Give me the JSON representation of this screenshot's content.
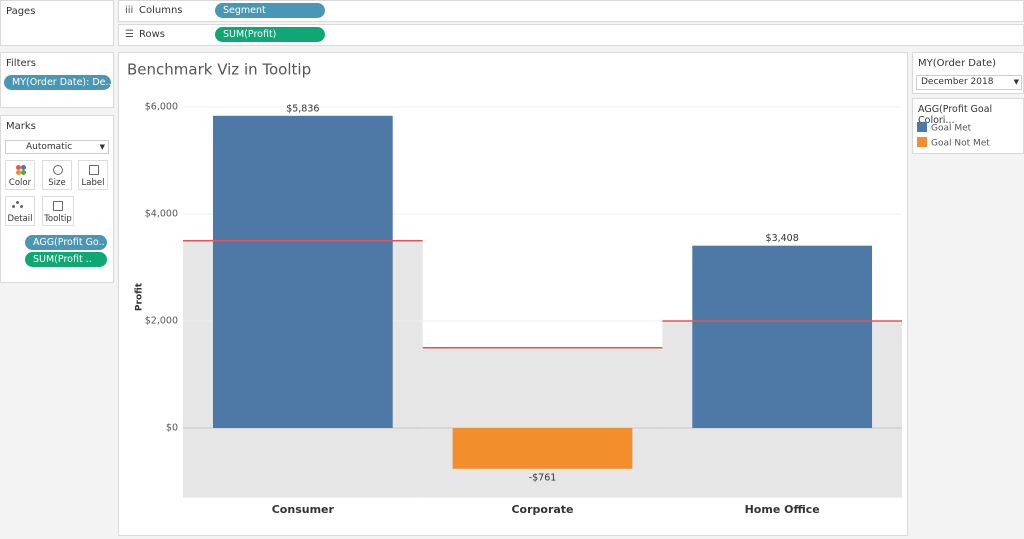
{
  "ui": {
    "pages": "Pages",
    "columns_label": "Columns",
    "columns_pill": "Segment",
    "rows_label": "Rows",
    "rows_pill": "SUM(Profit)",
    "filters": {
      "title": "Filters",
      "pill": "MY(Order Date): De.."
    },
    "marks": {
      "title": "Marks",
      "mark_type": "Automatic",
      "buttons": [
        "Color",
        "Size",
        "Label",
        "Detail",
        "Tooltip"
      ],
      "pills": [
        "AGG(Profit Go..",
        "SUM(Profit .."
      ]
    },
    "filter_card": {
      "title": "MY(Order Date)",
      "value": "December 2018"
    },
    "legend_title": "AGG(Profit Goal Colori..."
  },
  "chart_data": {
    "type": "bar",
    "title": "Benchmark Viz in Tooltip",
    "y_label": "Profit",
    "categories": [
      "Consumer",
      "Corporate",
      "Home Office"
    ],
    "series": [
      {
        "name": "Goal Met",
        "color": "#4e79a7",
        "values": [
          5836,
          null,
          3408
        ],
        "value_labels": [
          "$5,836",
          null,
          "$3,408"
        ]
      },
      {
        "name": "Goal Not Met",
        "color": "#f28e2b",
        "values": [
          null,
          -761,
          null
        ],
        "value_labels": [
          null,
          "-$761",
          null
        ]
      }
    ],
    "benchmark": {
      "values": [
        3500,
        1500,
        2000
      ],
      "color": "#e15759",
      "band_color": "#e6e6e6"
    },
    "ylim": [
      -1300,
      6200
    ],
    "yticks": [
      {
        "value": 0,
        "label": "$0"
      },
      {
        "value": 2000,
        "label": "$2,000"
      },
      {
        "value": 4000,
        "label": "$4,000"
      },
      {
        "value": 6000,
        "label": "$6,000"
      }
    ],
    "grid": true
  }
}
